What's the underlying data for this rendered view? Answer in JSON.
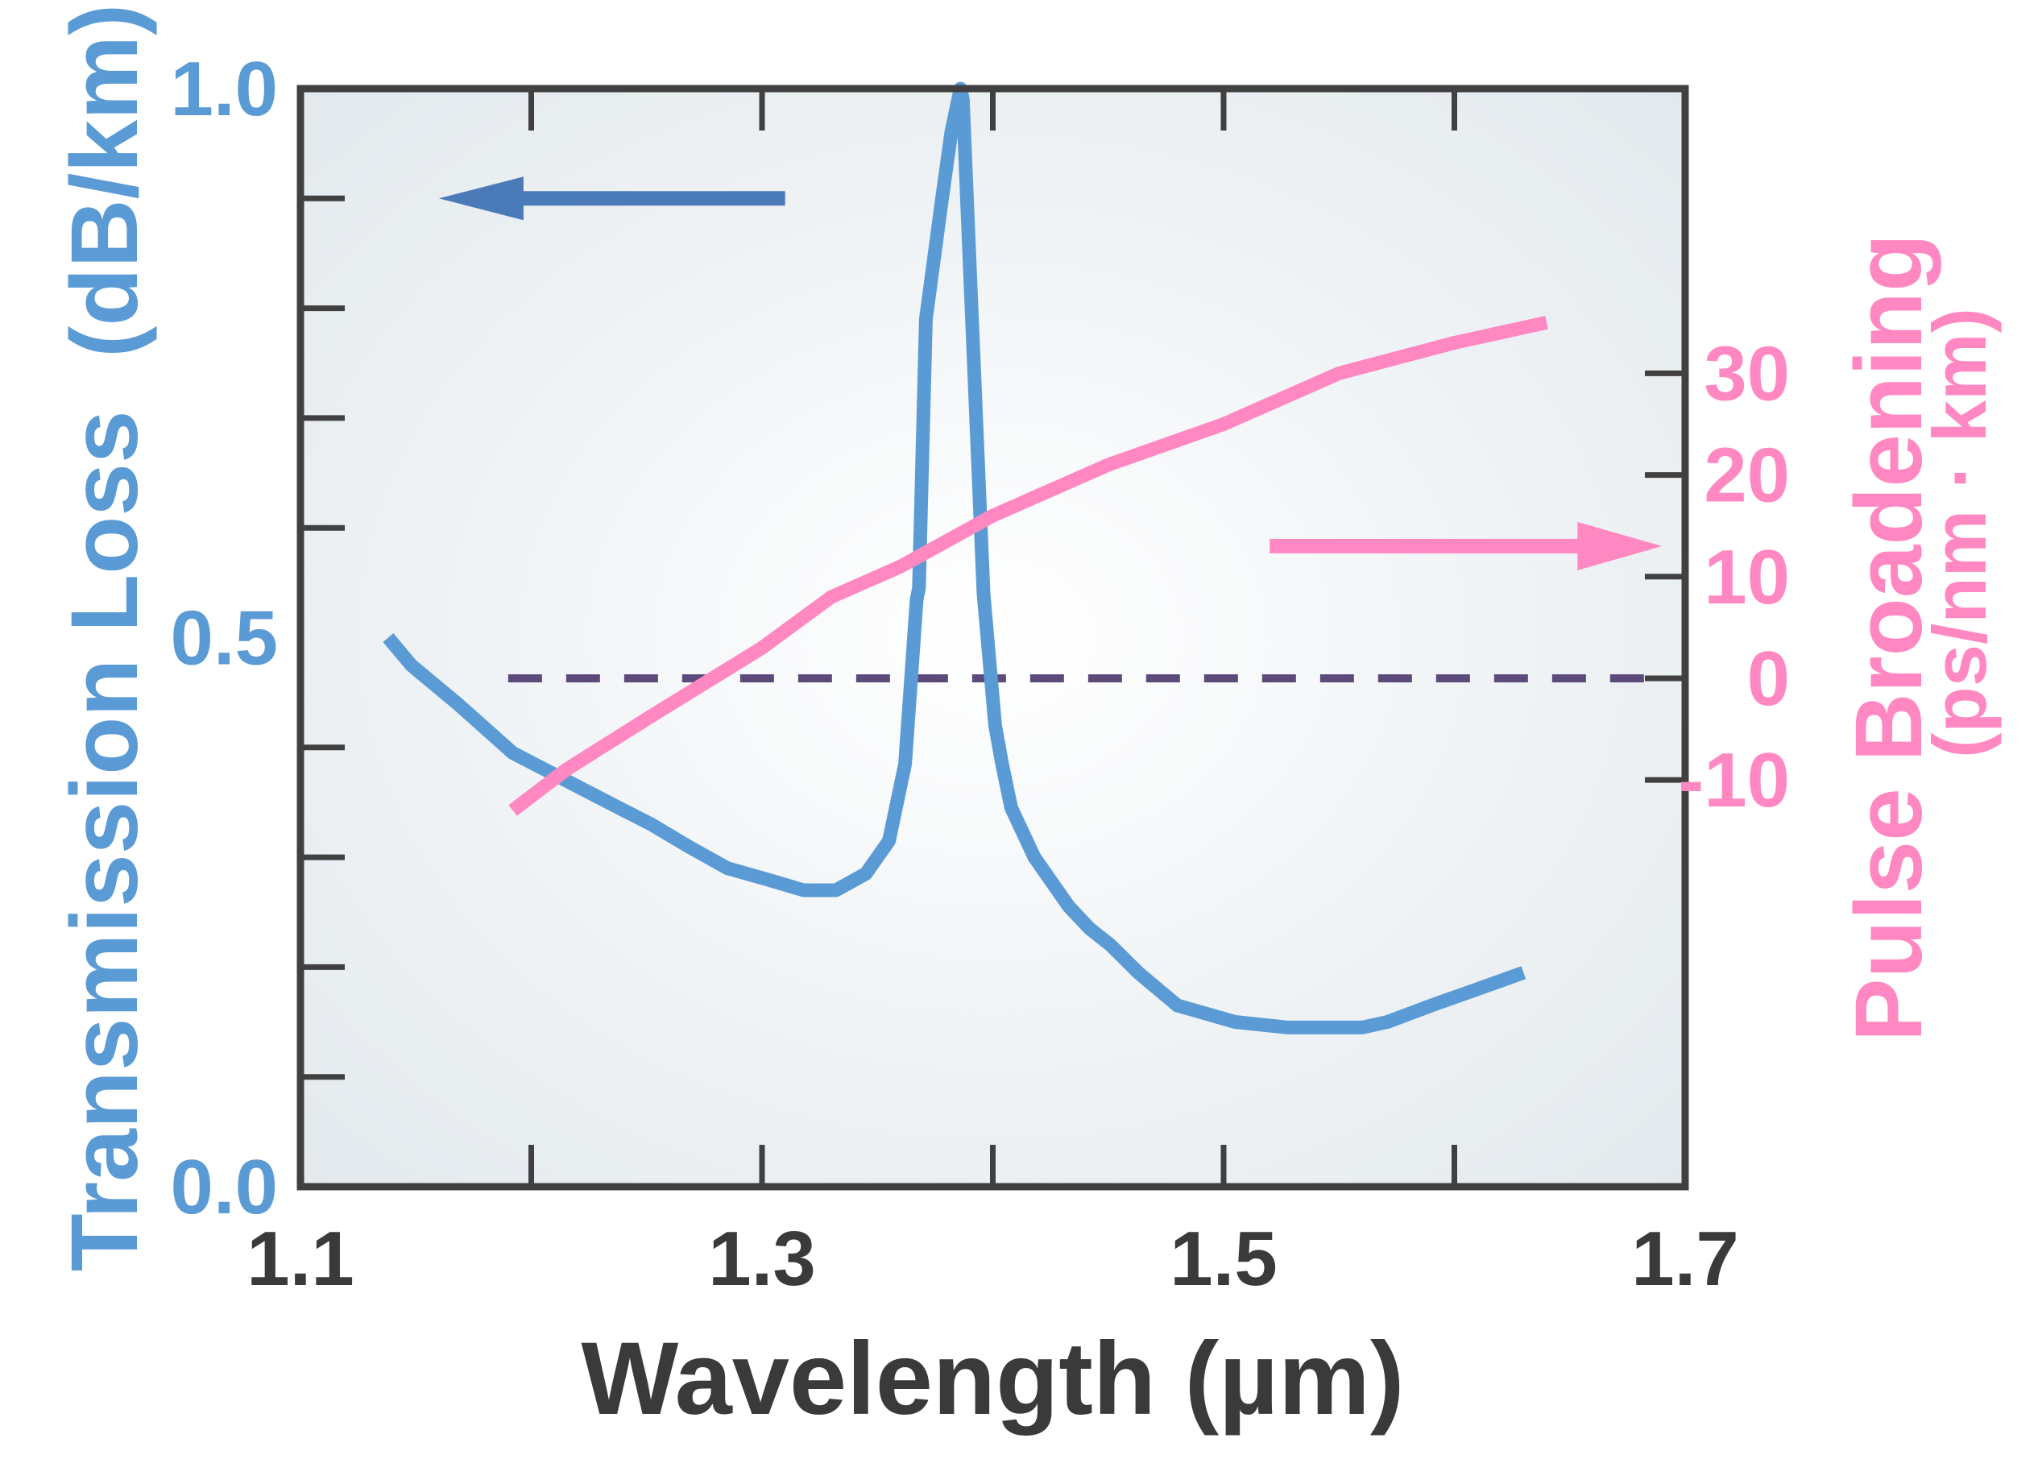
{
  "colors": {
    "loss": "#5b9bd5",
    "loss_arrow": "#4a7ab8",
    "dispersion": "#ff88c2",
    "zero_line": "#5b4a7a",
    "frame": "#404040",
    "text_dark": "#3a3a3a",
    "panel_center": "#ffffff",
    "panel_edge": "#e3e9ed"
  },
  "chart_data": {
    "type": "line",
    "xlabel": "Wavelength (µm)",
    "ylabel": "Transmission Loss  (dB/km)",
    "y2label": "Pulse Broadening",
    "y2label_unit": "(ps/nm · km)",
    "xlim": [
      1.1,
      1.7
    ],
    "ylim": [
      0.0,
      1.0
    ],
    "y2lim": [
      -50,
      58
    ],
    "x_ticks": [
      1.1,
      1.3,
      1.5,
      1.7
    ],
    "x_tick_labels": [
      "1.1",
      "1.3",
      "1.5",
      "1.7"
    ],
    "x_minor_ticks": [
      1.2,
      1.3,
      1.4,
      1.5,
      1.6
    ],
    "y_tick_labels": [
      "0.0",
      "0.5",
      "1.0"
    ],
    "y_ticks": [
      0.0,
      0.5,
      1.0
    ],
    "y_minor_ticks": [
      0.1,
      0.2,
      0.3,
      0.4,
      0.6,
      0.7,
      0.8,
      0.9
    ],
    "y2_tick_labels": [
      "-10",
      "0",
      "10",
      "20",
      "30"
    ],
    "y2_ticks": [
      -10,
      0,
      10,
      20,
      30
    ],
    "grid": false,
    "series": [
      {
        "axis": "left",
        "x": [
          1.138,
          1.148,
          1.168,
          1.192,
          1.215,
          1.238,
          1.252,
          1.268,
          1.285,
          1.302,
          1.318,
          1.332,
          1.345,
          1.355,
          1.362,
          1.367,
          1.368,
          1.371,
          1.378,
          1.382,
          1.386,
          1.387,
          1.39,
          1.396,
          1.401,
          1.404,
          1.408,
          1.418,
          1.433,
          1.442,
          1.451,
          1.463,
          1.48,
          1.505,
          1.528,
          1.545,
          1.56,
          1.571,
          1.59,
          1.61,
          1.63
        ],
        "y": [
          0.5,
          0.475,
          0.44,
          0.395,
          0.37,
          0.345,
          0.33,
          0.31,
          0.29,
          0.28,
          0.27,
          0.27,
          0.285,
          0.315,
          0.385,
          0.535,
          0.545,
          0.79,
          0.9,
          0.96,
          1.0,
          0.99,
          0.84,
          0.54,
          0.42,
          0.385,
          0.345,
          0.3,
          0.255,
          0.235,
          0.22,
          0.195,
          0.165,
          0.15,
          0.145,
          0.145,
          0.145,
          0.15,
          0.165,
          0.18,
          0.195
        ]
      },
      {
        "axis": "right",
        "x": [
          1.192,
          1.215,
          1.25,
          1.3,
          1.33,
          1.36,
          1.4,
          1.45,
          1.5,
          1.55,
          1.6,
          1.64
        ],
        "y": [
          -13,
          -9,
          -4,
          3,
          8,
          11,
          16,
          21,
          25,
          30,
          33,
          35
        ]
      }
    ],
    "reference_line": {
      "axis": "right",
      "y": 0,
      "x_from": 1.19,
      "x_to": 1.69
    },
    "annotations": [
      {
        "type": "arrow",
        "direction": "left",
        "series": "loss",
        "x_from": 1.31,
        "x_to": 1.16,
        "y": 0.9
      },
      {
        "type": "arrow",
        "direction": "right",
        "series": "dispersion",
        "x_from": 1.52,
        "x_to": 1.69,
        "y2": 13
      }
    ]
  }
}
